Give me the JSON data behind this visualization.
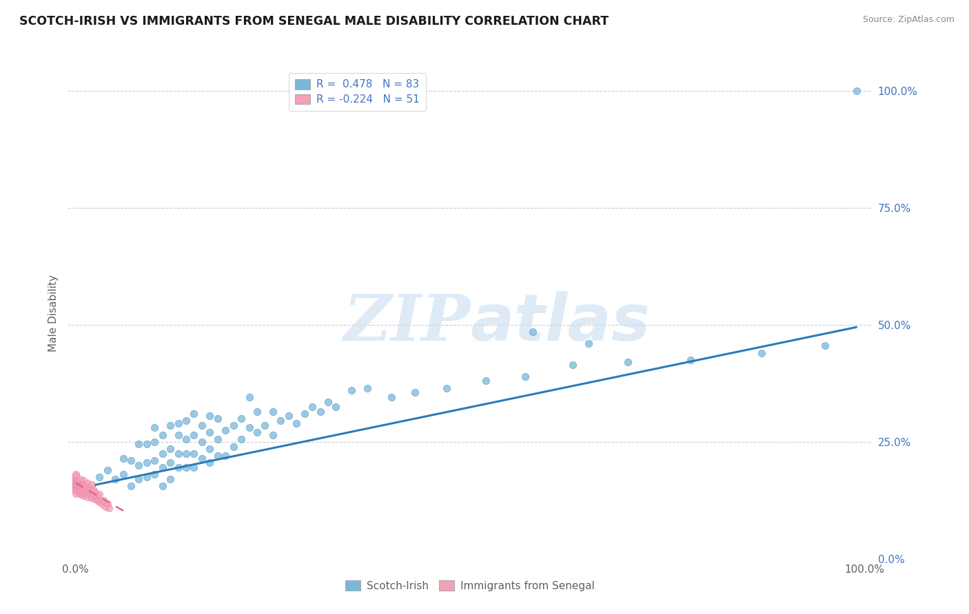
{
  "title": "SCOTCH-IRISH VS IMMIGRANTS FROM SENEGAL MALE DISABILITY CORRELATION CHART",
  "source": "Source: ZipAtlas.com",
  "ylabel": "Male Disability",
  "ytick_labels": [
    "0.0%",
    "25.0%",
    "50.0%",
    "75.0%",
    "100.0%"
  ],
  "ytick_values": [
    0.0,
    0.25,
    0.5,
    0.75,
    1.0
  ],
  "xtick_labels": [
    "0.0%",
    "100.0%"
  ],
  "xtick_values": [
    0.0,
    1.0
  ],
  "legend_blue_label": "Scotch-Irish",
  "legend_pink_label": "Immigrants from Senegal",
  "legend_blue_r": "R =  0.478",
  "legend_blue_n": "N = 83",
  "legend_pink_r": "R = -0.224",
  "legend_pink_n": "N = 51",
  "blue_color": "#7ab8d9",
  "pink_color": "#f4a0b5",
  "blue_line_color": "#2b7bba",
  "pink_line_color": "#e8608a",
  "blue_marker_edge": "#5a9ec9",
  "pink_marker_edge": "#e888a8",
  "background_color": "#ffffff",
  "grid_color": "#c8c8c8",
  "watermark_color": "#c8dff0",
  "tick_label_color": "#4472c4",
  "axis_label_color": "#606060",
  "title_color": "#1a1a1a",
  "source_color": "#888888",
  "scatter_blue_x": [
    0.03,
    0.04,
    0.05,
    0.06,
    0.06,
    0.07,
    0.07,
    0.08,
    0.08,
    0.08,
    0.09,
    0.09,
    0.09,
    0.1,
    0.1,
    0.1,
    0.1,
    0.11,
    0.11,
    0.11,
    0.11,
    0.12,
    0.12,
    0.12,
    0.12,
    0.13,
    0.13,
    0.13,
    0.13,
    0.14,
    0.14,
    0.14,
    0.14,
    0.15,
    0.15,
    0.15,
    0.15,
    0.16,
    0.16,
    0.16,
    0.17,
    0.17,
    0.17,
    0.17,
    0.18,
    0.18,
    0.18,
    0.19,
    0.19,
    0.2,
    0.2,
    0.21,
    0.21,
    0.22,
    0.22,
    0.23,
    0.23,
    0.24,
    0.25,
    0.25,
    0.26,
    0.27,
    0.28,
    0.29,
    0.3,
    0.31,
    0.32,
    0.33,
    0.35,
    0.37,
    0.4,
    0.43,
    0.47,
    0.52,
    0.57,
    0.63,
    0.7,
    0.78,
    0.87,
    0.95,
    0.58,
    0.65,
    0.99
  ],
  "scatter_blue_y": [
    0.175,
    0.19,
    0.17,
    0.18,
    0.215,
    0.155,
    0.21,
    0.17,
    0.2,
    0.245,
    0.175,
    0.205,
    0.245,
    0.18,
    0.21,
    0.25,
    0.28,
    0.155,
    0.195,
    0.225,
    0.265,
    0.17,
    0.205,
    0.235,
    0.285,
    0.195,
    0.225,
    0.265,
    0.29,
    0.195,
    0.225,
    0.255,
    0.295,
    0.195,
    0.225,
    0.265,
    0.31,
    0.215,
    0.25,
    0.285,
    0.205,
    0.235,
    0.27,
    0.305,
    0.22,
    0.255,
    0.3,
    0.22,
    0.275,
    0.24,
    0.285,
    0.255,
    0.3,
    0.28,
    0.345,
    0.27,
    0.315,
    0.285,
    0.265,
    0.315,
    0.295,
    0.305,
    0.29,
    0.31,
    0.325,
    0.315,
    0.335,
    0.325,
    0.36,
    0.365,
    0.345,
    0.355,
    0.365,
    0.38,
    0.39,
    0.415,
    0.42,
    0.425,
    0.44,
    0.455,
    0.485,
    0.46,
    1.0
  ],
  "scatter_pink_x": [
    0.0,
    0.0,
    0.0,
    0.0,
    0.0,
    0.0,
    0.0,
    0.0,
    0.0,
    0.0,
    0.0,
    0.0,
    0.0,
    0.0,
    0.0,
    0.005,
    0.005,
    0.005,
    0.005,
    0.005,
    0.007,
    0.007,
    0.008,
    0.008,
    0.01,
    0.01,
    0.01,
    0.01,
    0.012,
    0.012,
    0.015,
    0.015,
    0.015,
    0.018,
    0.018,
    0.02,
    0.02,
    0.02,
    0.022,
    0.022,
    0.025,
    0.025,
    0.027,
    0.028,
    0.03,
    0.03,
    0.033,
    0.035,
    0.038,
    0.04,
    0.042
  ],
  "scatter_pink_y": [
    0.14,
    0.145,
    0.15,
    0.152,
    0.155,
    0.158,
    0.16,
    0.162,
    0.165,
    0.168,
    0.17,
    0.172,
    0.175,
    0.178,
    0.18,
    0.14,
    0.148,
    0.155,
    0.162,
    0.17,
    0.138,
    0.155,
    0.142,
    0.16,
    0.135,
    0.148,
    0.158,
    0.168,
    0.14,
    0.155,
    0.132,
    0.145,
    0.162,
    0.138,
    0.152,
    0.13,
    0.145,
    0.158,
    0.135,
    0.148,
    0.128,
    0.142,
    0.133,
    0.125,
    0.122,
    0.138,
    0.118,
    0.125,
    0.112,
    0.118,
    0.108
  ],
  "blue_trendline_x": [
    0.025,
    0.99
  ],
  "blue_trendline_y": [
    0.158,
    0.495
  ],
  "pink_trendline_x": [
    0.0,
    0.065
  ],
  "pink_trendline_y": [
    0.162,
    0.098
  ],
  "xlim": [
    -0.01,
    1.01
  ],
  "ylim": [
    0.0,
    1.05
  ]
}
